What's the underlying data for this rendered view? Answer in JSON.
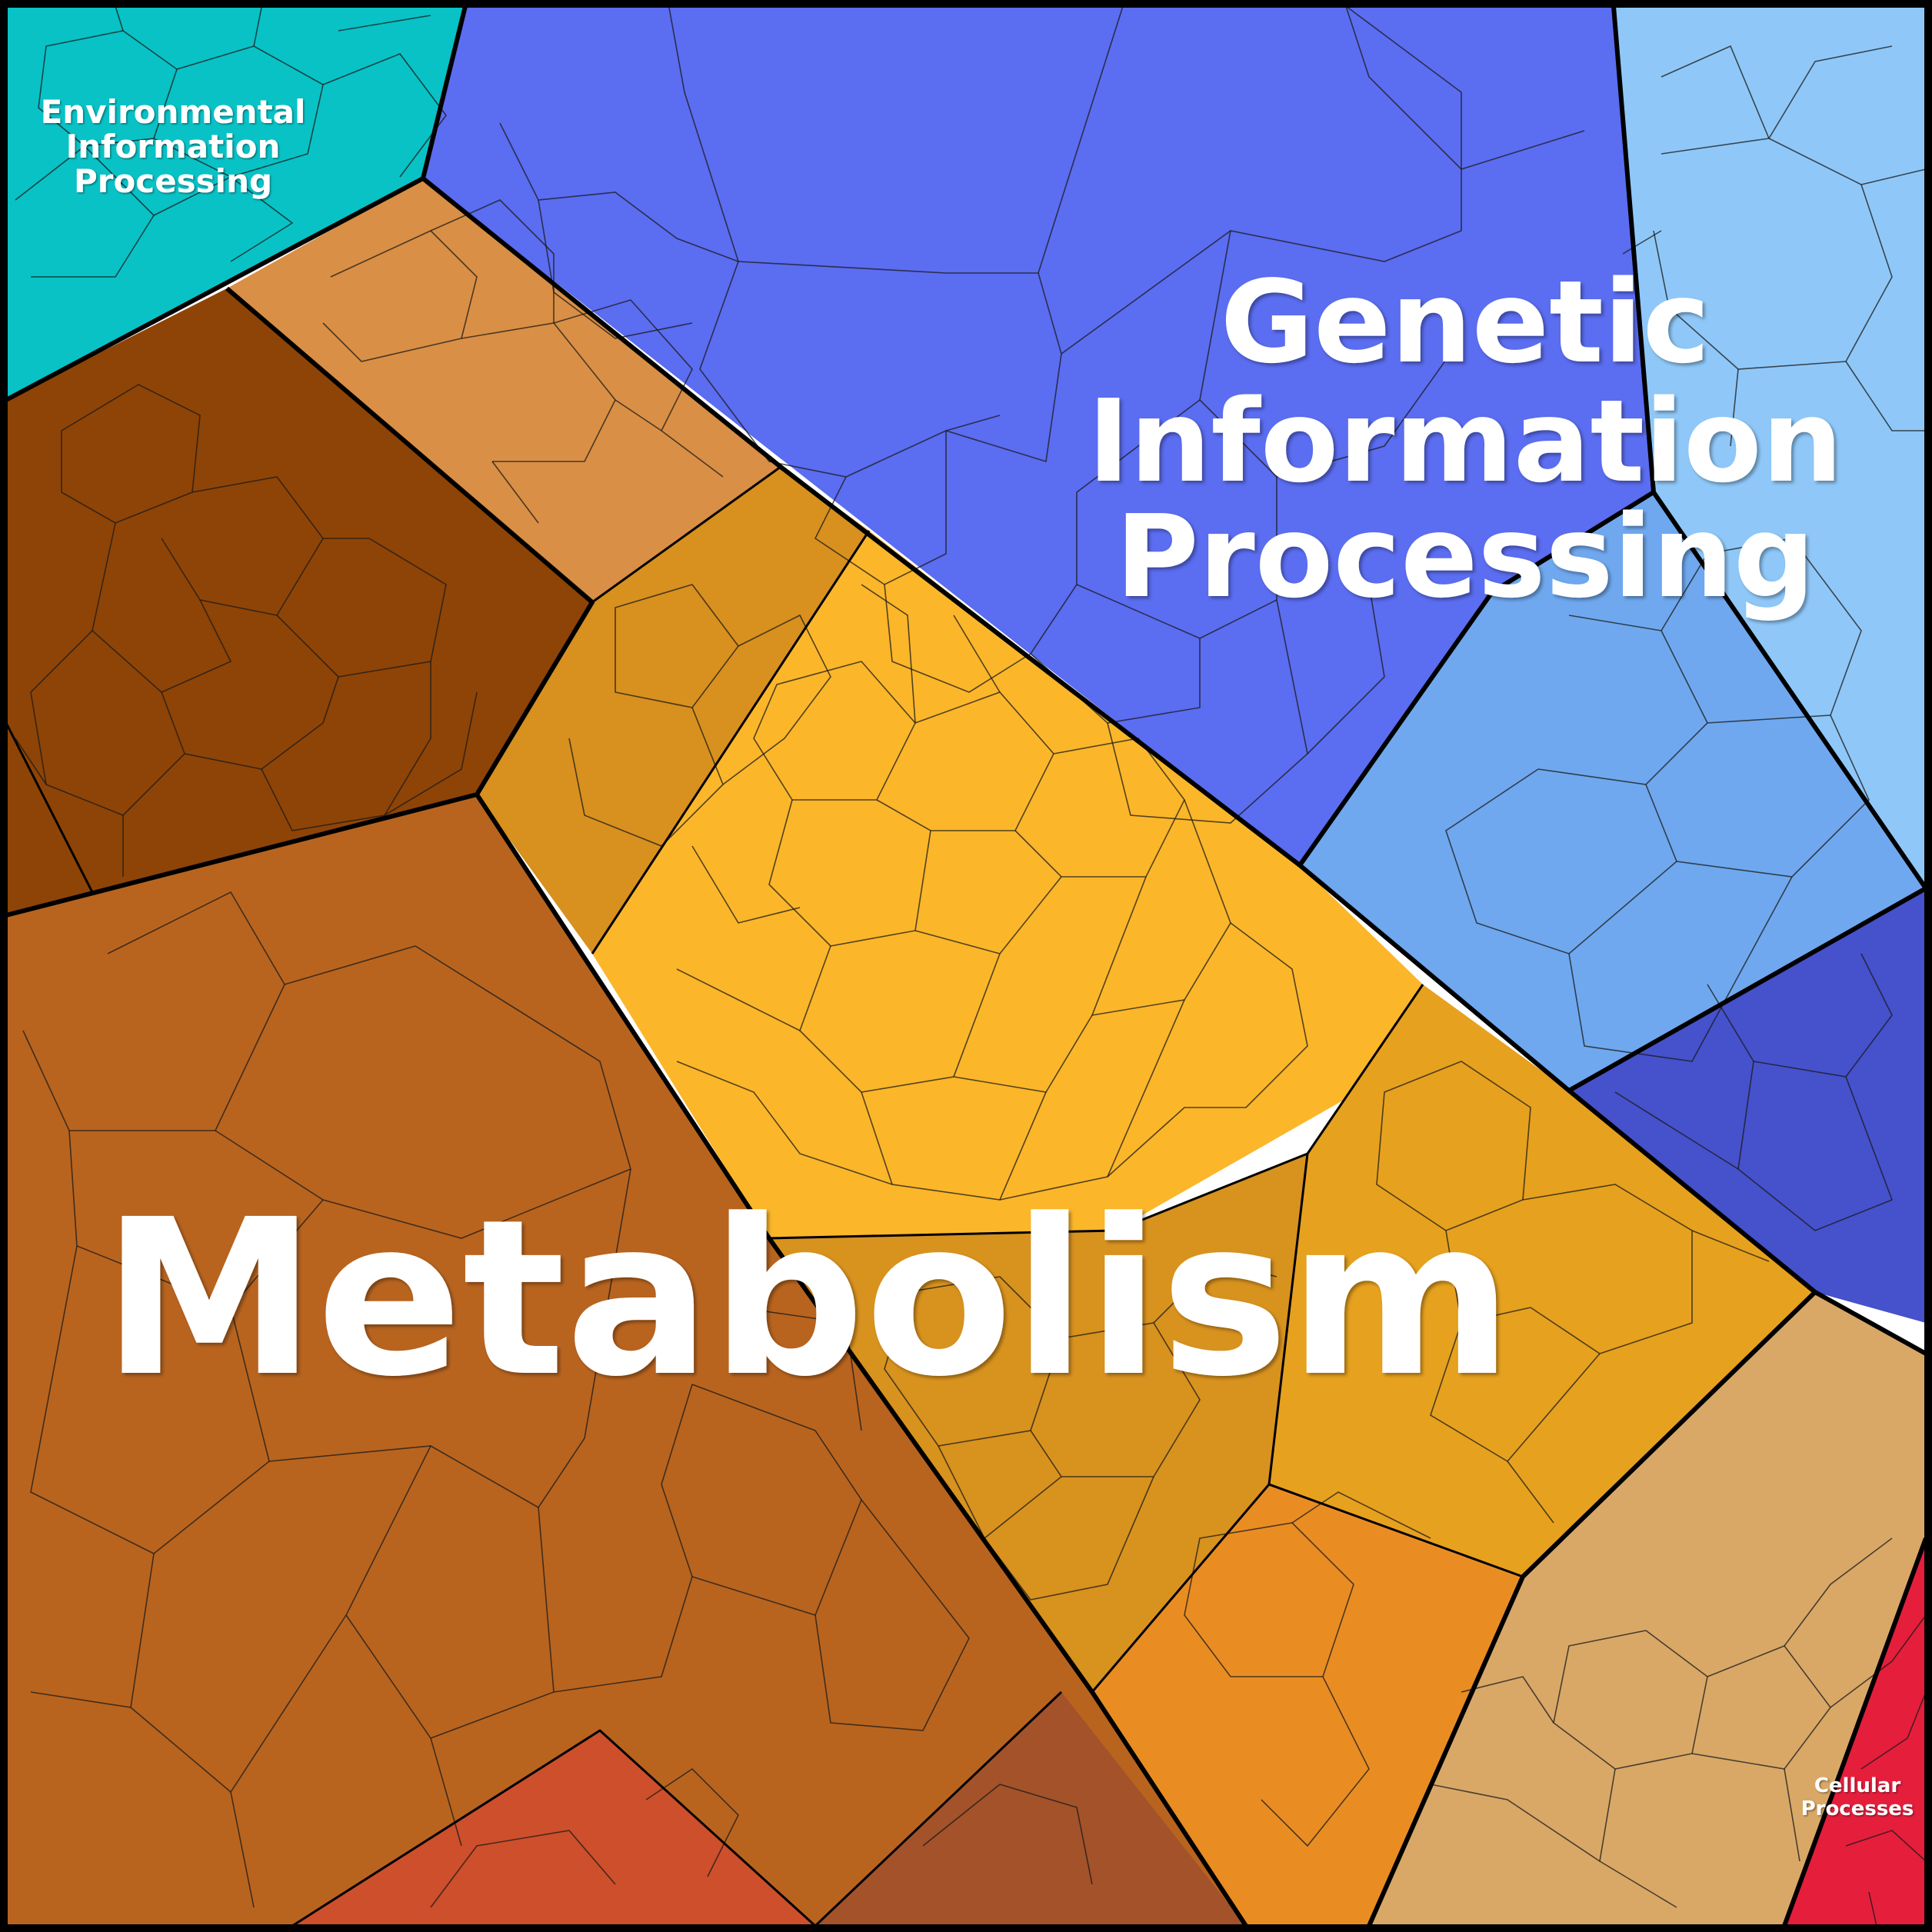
{
  "labels": {
    "environmental_line1": "Environmental",
    "environmental_line2": "Information",
    "environmental_line3": "Processing",
    "genetic_line1": "Genetic",
    "genetic_line2": "Information",
    "genetic_line3": "Processing",
    "metabolism": "Metabolism",
    "cellular_line1": "Cellular",
    "cellular_line2": "Processes"
  },
  "colors": {
    "environmental": "#08C2C6",
    "genetic_main": "#5B6DF0",
    "genetic_light": "#8FC8F8",
    "genetic_sky": "#6FA8EE",
    "genetic_deep": "#4651CC",
    "metabolism_brown": "#B8641F",
    "metabolism_dark": "#8E4406",
    "metabolism_yellow": "#FBB62A",
    "metabolism_ochre": "#D8901E",
    "metabolism_orange": "#E98D23",
    "metabolism_tan": "#D9A867",
    "metabolism_red": "#CD4F2B",
    "cellular": "#E51E3C",
    "border": "#000000"
  }
}
